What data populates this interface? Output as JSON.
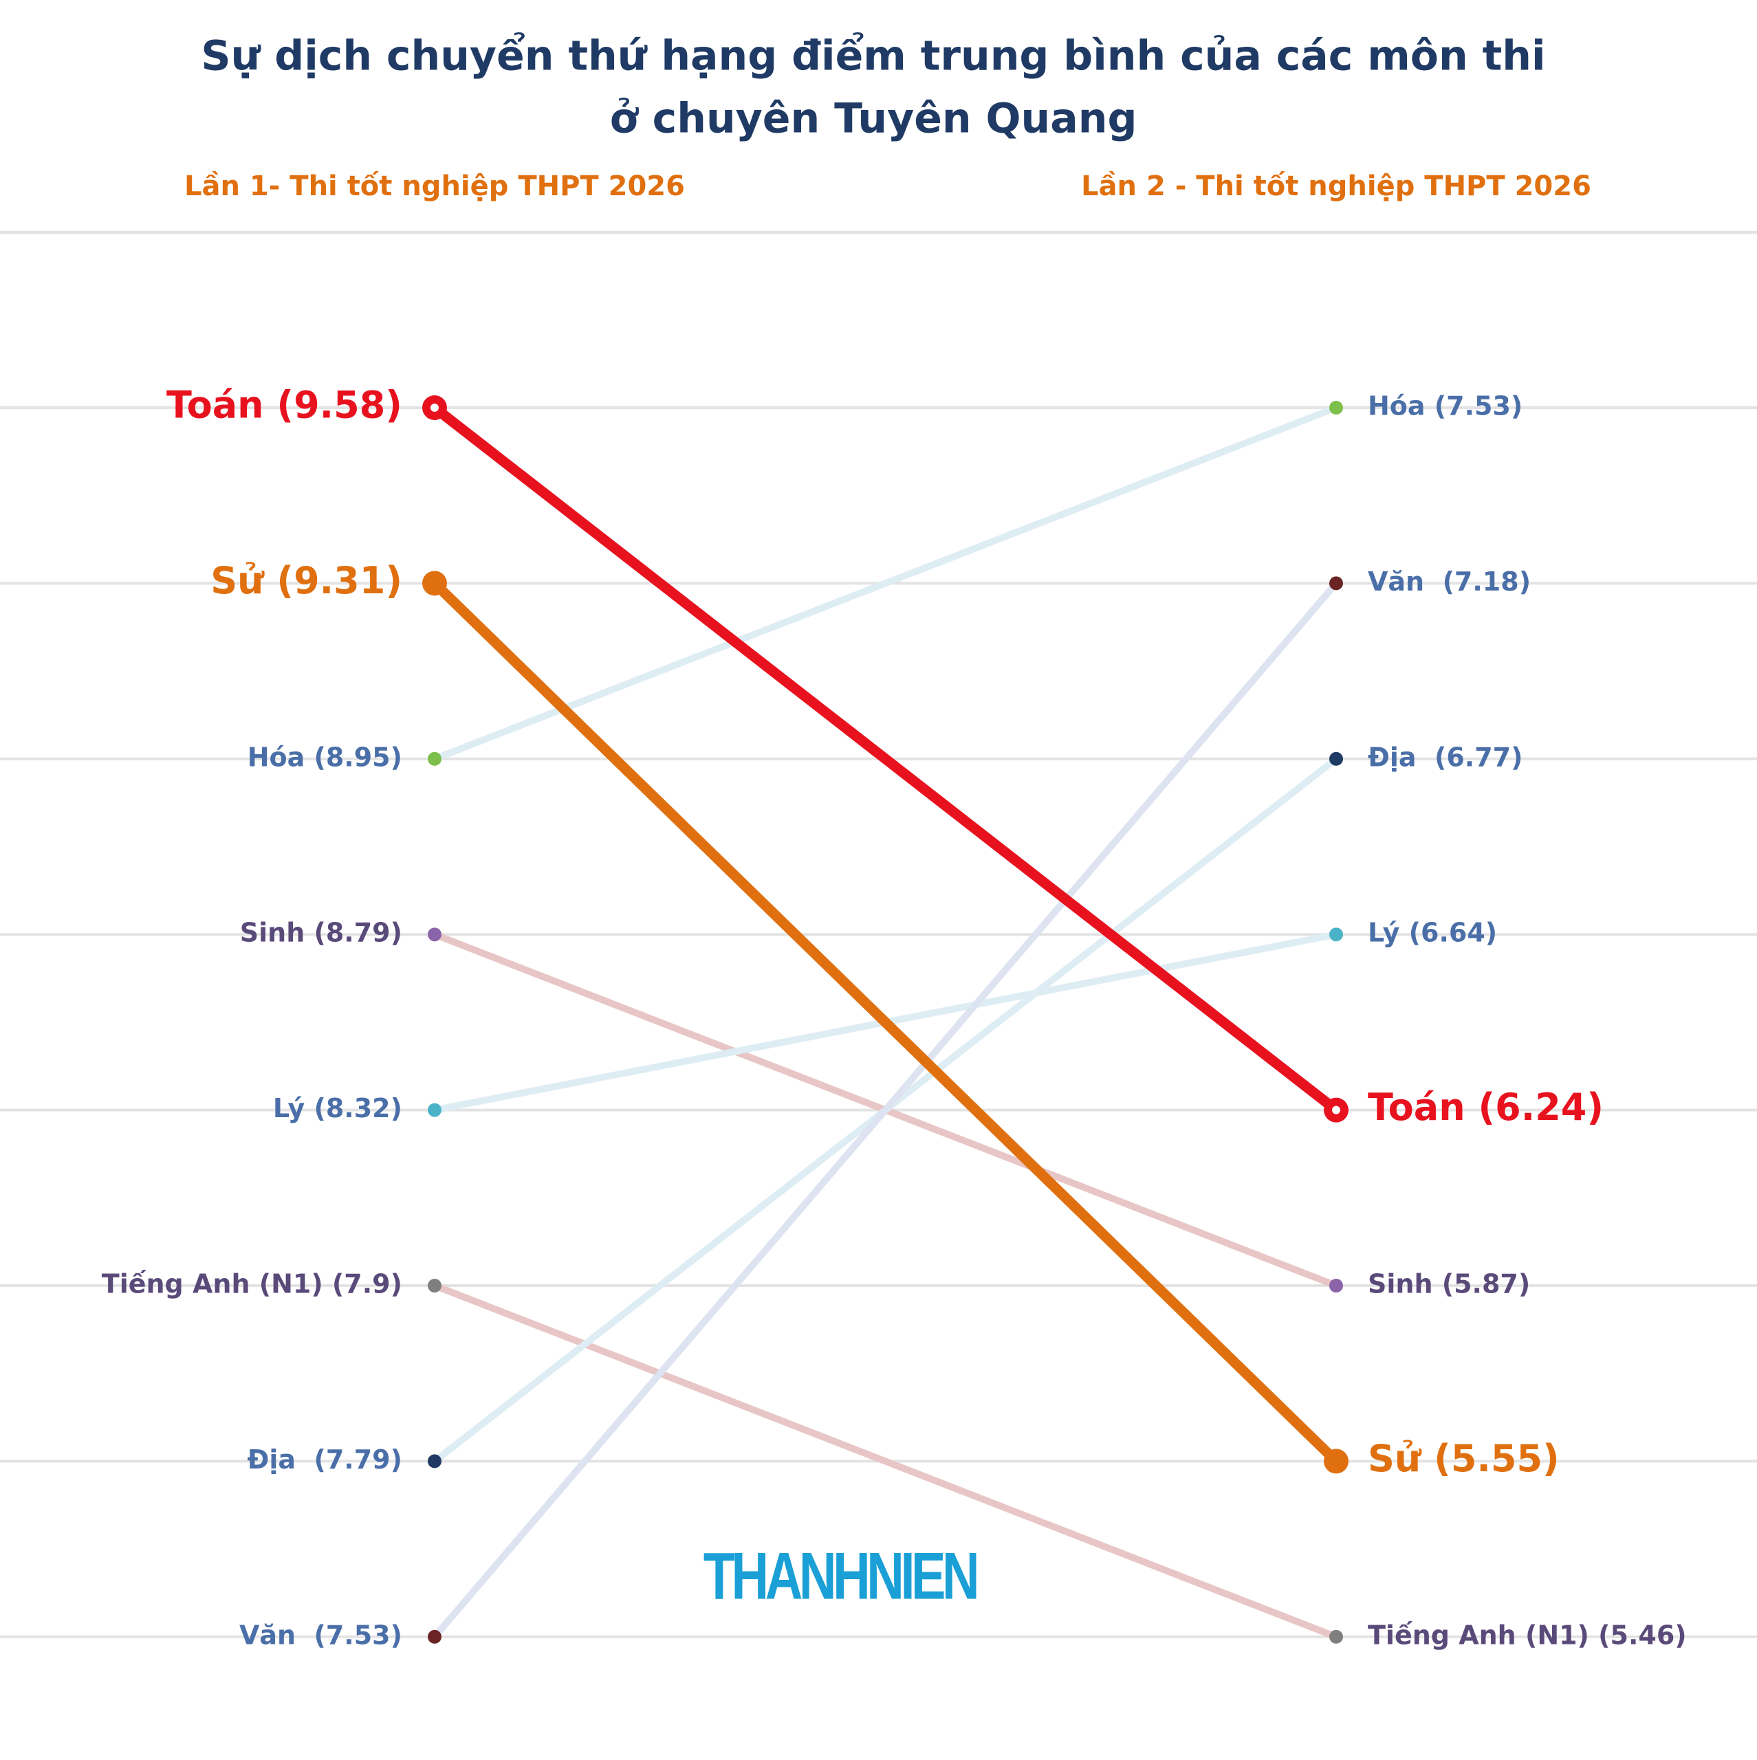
{
  "chart_data": {
    "type": "slope",
    "title": [
      "Sự dịch chuyển thứ hạng điểm trung bình của các môn thi",
      "ở chuyên Tuyên Quang"
    ],
    "categories": [
      "Lần 1- Thi tốt nghiệp THPT 2026",
      "Lần 2 - Thi tốt nghiệp THPT 2026"
    ],
    "logo": "THANHNIEN",
    "grid": true,
    "series": [
      {
        "name": "Toán",
        "values": [
          9.58,
          6.24
        ],
        "value_labels": [
          "Toán (9.58)",
          "Toán (6.24)"
        ],
        "color": "#e8121f",
        "marker_color": "#e8121f",
        "label_color": "#e8121f",
        "emphasis": true
      },
      {
        "name": "Sử",
        "values": [
          9.31,
          5.55
        ],
        "value_labels": [
          "Sử (9.31)",
          "Sử (5.55)"
        ],
        "color": "#e0700f",
        "marker_color": "#e0700f",
        "label_color": "#e0700f",
        "emphasis": true
      },
      {
        "name": "Hóa",
        "values": [
          8.95,
          7.53
        ],
        "value_labels": [
          "Hóa (8.95)",
          "Hóa (7.53)"
        ],
        "color": "#ddedf3",
        "marker_color": "#7cbf4a",
        "label_color": "#4a6fa8",
        "emphasis": false
      },
      {
        "name": "Sinh",
        "values": [
          8.79,
          5.87
        ],
        "value_labels": [
          "Sinh (8.79)",
          "Sinh (5.87)"
        ],
        "color": "#e8c6c6",
        "marker_color": "#8a63a8",
        "label_color": "#5a4a7a",
        "emphasis": false
      },
      {
        "name": "Lý",
        "values": [
          8.32,
          6.64
        ],
        "value_labels": [
          "Lý (8.32)",
          "Lý (6.64)"
        ],
        "color": "#ddedf3",
        "marker_color": "#4bb3c8",
        "label_color": "#4a6fa8",
        "emphasis": false
      },
      {
        "name": "Tiếng Anh (N1)",
        "values": [
          7.9,
          5.46
        ],
        "value_labels": [
          "Tiếng Anh (N1) (7.9)",
          "Tiếng Anh (N1) (5.46)"
        ],
        "color": "#e8c6c6",
        "marker_color": "#7f7f7f",
        "label_color": "#5a4a7a",
        "emphasis": false
      },
      {
        "name": "Địa",
        "values": [
          7.79,
          6.77
        ],
        "value_labels": [
          "Địa  (7.79)",
          "Địa  (6.77)"
        ],
        "color": "#ddedf3",
        "marker_color": "#1f3a64",
        "label_color": "#4a6fa8",
        "emphasis": false
      },
      {
        "name": "Văn",
        "values": [
          7.53,
          7.18
        ],
        "value_labels": [
          "Văn  (7.53)",
          "Văn  (7.18)"
        ],
        "color": "#dde3f0",
        "marker_color": "#6b2424",
        "label_color": "#4a6fa8",
        "emphasis": false
      }
    ]
  }
}
